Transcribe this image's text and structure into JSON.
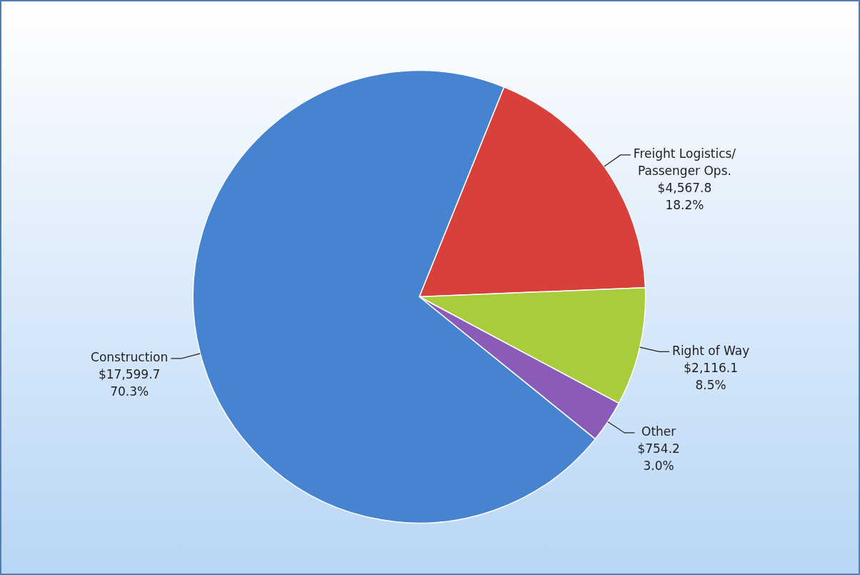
{
  "chart_data": {
    "type": "pie",
    "categories": [
      "Freight Logistics/ Passenger Ops.",
      "Right of Way",
      "Other",
      "Construction"
    ],
    "values": [
      4567.8,
      2116.1,
      754.2,
      17599.7
    ],
    "colors": [
      "#d8403c",
      "#a8cc3c",
      "#8a5cb8",
      "#4683d0"
    ],
    "value_labels": [
      "$4,567.8\n18.2%",
      "$2,116.1\n8.5%",
      "$754.2\n3.0%",
      "$17,599.7\n70.3%"
    ],
    "legend": false
  }
}
